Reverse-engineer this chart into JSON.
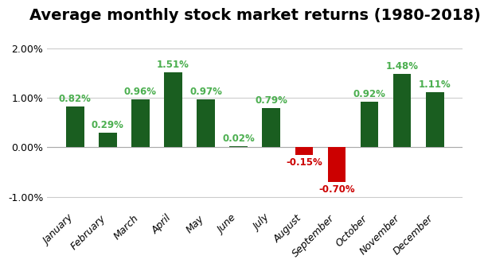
{
  "title": "Average monthly stock market returns (1980-2018)",
  "months": [
    "January",
    "February",
    "March",
    "April",
    "May",
    "June",
    "July",
    "August",
    "September",
    "October",
    "November",
    "December"
  ],
  "values": [
    0.82,
    0.29,
    0.96,
    1.51,
    0.97,
    0.02,
    0.79,
    -0.15,
    -0.7,
    0.92,
    1.48,
    1.11
  ],
  "bar_color_positive": "#1a5e20",
  "bar_color_negative": "#cc0000",
  "label_color_positive": "#4caf50",
  "label_color_negative": "#cc0000",
  "ylim": [
    -1.25,
    2.35
  ],
  "yticks": [
    -1.0,
    0.0,
    1.0,
    2.0
  ],
  "background_color": "#ffffff",
  "grid_color": "#cccccc",
  "title_fontsize": 14,
  "label_fontsize": 8.5,
  "tick_fontsize": 9,
  "bar_width": 0.55
}
